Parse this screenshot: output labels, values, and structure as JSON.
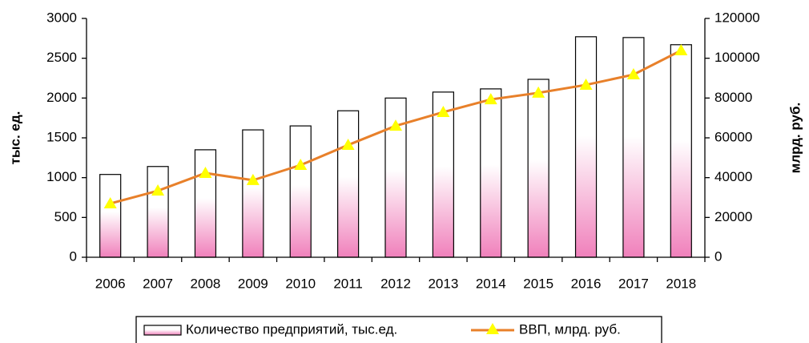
{
  "chart_data": {
    "type": "bar_line",
    "categories": [
      "2006",
      "2007",
      "2008",
      "2009",
      "2010",
      "2011",
      "2012",
      "2013",
      "2014",
      "2015",
      "2016",
      "2017",
      "2018"
    ],
    "series": [
      {
        "name": "Количество предприятий, тыс.ед.",
        "type": "bar",
        "color": "#f080bb",
        "values": [
          1040,
          1140,
          1350,
          1600,
          1650,
          1840,
          2000,
          2075,
          2115,
          2235,
          2770,
          2760,
          2670
        ]
      },
      {
        "name": "ВВП, млрд. руб.",
        "type": "line",
        "axis": "y2",
        "color": "#e8802a",
        "marker_color": "#ffff00",
        "values": [
          27000,
          33400,
          42300,
          38700,
          46300,
          56400,
          66000,
          72900,
          79300,
          82600,
          86600,
          91800,
          103900
        ]
      }
    ],
    "ylabel": "тыс. ед.",
    "y2label": "млрд. руб.",
    "ylim": [
      0,
      3000
    ],
    "yticks": [
      0,
      500,
      1000,
      1500,
      2000,
      2500,
      3000
    ],
    "y2lim": [
      0,
      120000
    ],
    "y2ticks": [
      0,
      20000,
      40000,
      60000,
      80000,
      100000,
      120000
    ],
    "legend": "bottom"
  }
}
